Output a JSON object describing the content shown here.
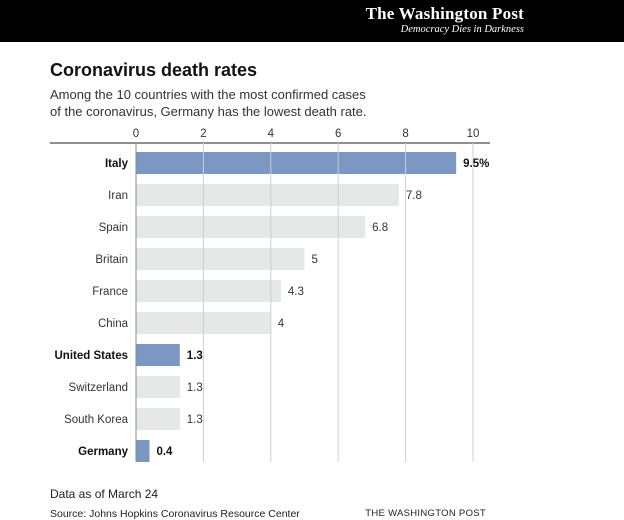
{
  "header": {
    "masthead": "The Washington Post",
    "tagline": "Democracy Dies in Darkness"
  },
  "chart_data": {
    "type": "bar",
    "orientation": "horizontal",
    "title": "Coronavirus death rates",
    "subtitle": "Among the 10 countries with the most confirmed cases of the coronavirus, Germany has the lowest death rate.",
    "categories": [
      "Italy",
      "Iran",
      "Spain",
      "Britain",
      "France",
      "China",
      "United States",
      "Switzerland",
      "South Korea",
      "Germany"
    ],
    "values": [
      9.5,
      7.8,
      6.8,
      5,
      4.3,
      4,
      1.3,
      1.3,
      1.3,
      0.4
    ],
    "value_labels": [
      "9.5%",
      "7.8",
      "6.8",
      "5",
      "4.3",
      "4",
      "1.3",
      "1.3",
      "1.3",
      "0.4"
    ],
    "highlighted": [
      "Italy",
      "United States",
      "Germany"
    ],
    "xlim": [
      0,
      10
    ],
    "xticks": [
      0,
      2,
      4,
      6,
      8,
      10
    ],
    "xlabel": "",
    "ylabel": "",
    "grid": true,
    "colors": {
      "highlight": "#7b97c3",
      "default": "#e6e7e8",
      "grid": "#cfcfcf"
    }
  },
  "footer": {
    "note": "Data as of March 24",
    "source": "Source:  Johns Hopkins Coronavirus Resource Center",
    "credit": "THE WASHINGTON POST"
  }
}
